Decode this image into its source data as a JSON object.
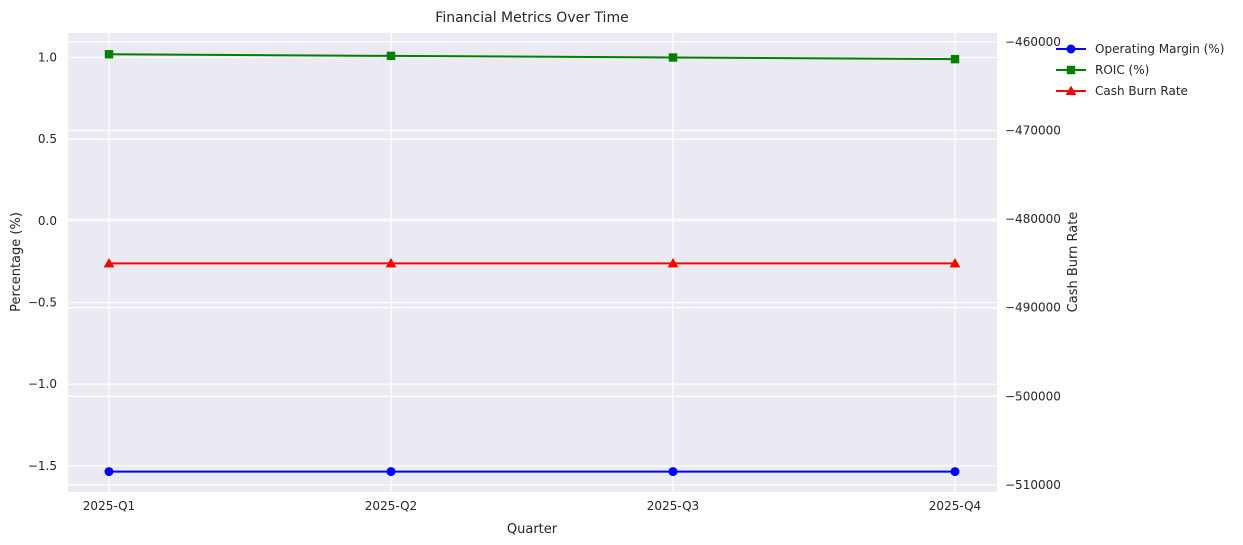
{
  "chart_data": {
    "type": "line",
    "title": "Financial Metrics Over Time",
    "xlabel": "Quarter",
    "ylabel_left": "Percentage (%)",
    "ylabel_right": "Cash Burn Rate",
    "categories": [
      "2025-Q1",
      "2025-Q2",
      "2025-Q3",
      "2025-Q4"
    ],
    "y_left": {
      "range": [
        -1.66,
        1.15
      ],
      "ticks": [
        1.0,
        0.5,
        0.0,
        -0.5,
        -1.0,
        -1.5
      ],
      "tick_labels": [
        "1.0",
        "0.5",
        "0.0",
        "−0.5",
        "−1.0",
        "−1.5"
      ]
    },
    "y_right": {
      "range": [
        -510800,
        -459000
      ],
      "ticks": [
        -460000,
        -470000,
        -480000,
        -490000,
        -500000,
        -510000
      ],
      "tick_labels": [
        "−460000",
        "−470000",
        "−480000",
        "−490000",
        "−500000",
        "−510000"
      ]
    },
    "grid": true,
    "background": "#EAEAF2",
    "legend_position": "outside-top-right",
    "series": [
      {
        "name": "Operating Margin (%)",
        "axis": "left",
        "color": "#0000FF",
        "marker": "circle",
        "values": [
          -1.535,
          -1.535,
          -1.535,
          -1.535
        ]
      },
      {
        "name": "ROIC (%)",
        "axis": "left",
        "color": "#008000",
        "marker": "square",
        "values": [
          1.02,
          1.01,
          1.0,
          0.99
        ]
      },
      {
        "name": "Cash Burn Rate",
        "axis": "right",
        "color": "#FF0000",
        "marker": "triangle",
        "values": [
          -485000,
          -485000,
          -485000,
          -485000
        ]
      }
    ]
  }
}
